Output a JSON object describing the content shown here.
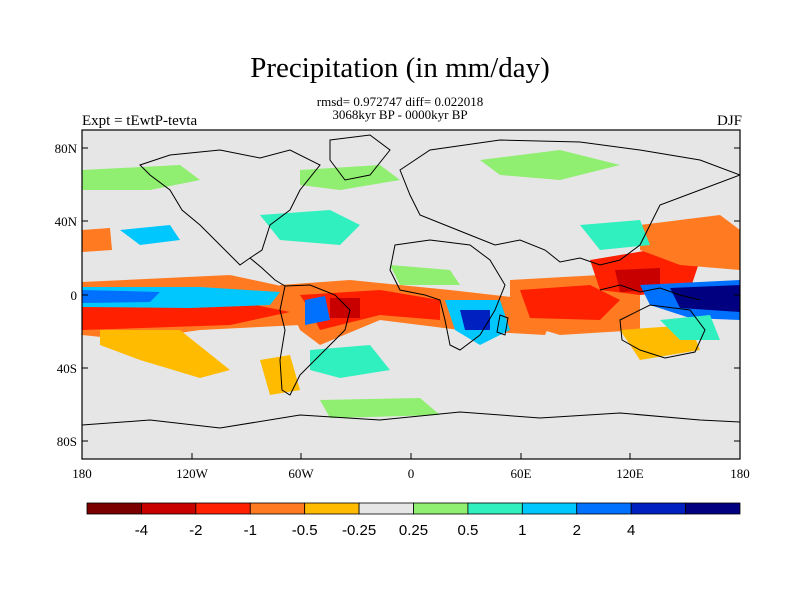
{
  "title": "Precipitation (in mm/day)",
  "stats_line1": "rmsd= 0.972747 diff= 0.022018",
  "stats_line2": "3068kyr BP - 0000kyr BP",
  "expt_label": "Expt = tEwtP-tevta",
  "season": "DJF",
  "colors": {
    "neutral": "#e6e6e6",
    "coast": "#000000"
  },
  "lat_ticks": [
    "80N",
    "40N",
    "0",
    "40S",
    "80S"
  ],
  "lon_ticks": [
    "180",
    "120W",
    "60W",
    "0",
    "60E",
    "120E",
    "180"
  ],
  "colorbar": {
    "colors": [
      "#7a0000",
      "#c80000",
      "#ff2000",
      "#ff7a20",
      "#ffbb00",
      "#e6e6e6",
      "#90ee70",
      "#30f0c0",
      "#00c8ff",
      "#0070ff",
      "#0020c0",
      "#000080"
    ],
    "labels": [
      "-4",
      "-2",
      "-1",
      "-0.5",
      "-0.25",
      "0.25",
      "0.5",
      "1",
      "2",
      "4"
    ]
  }
}
